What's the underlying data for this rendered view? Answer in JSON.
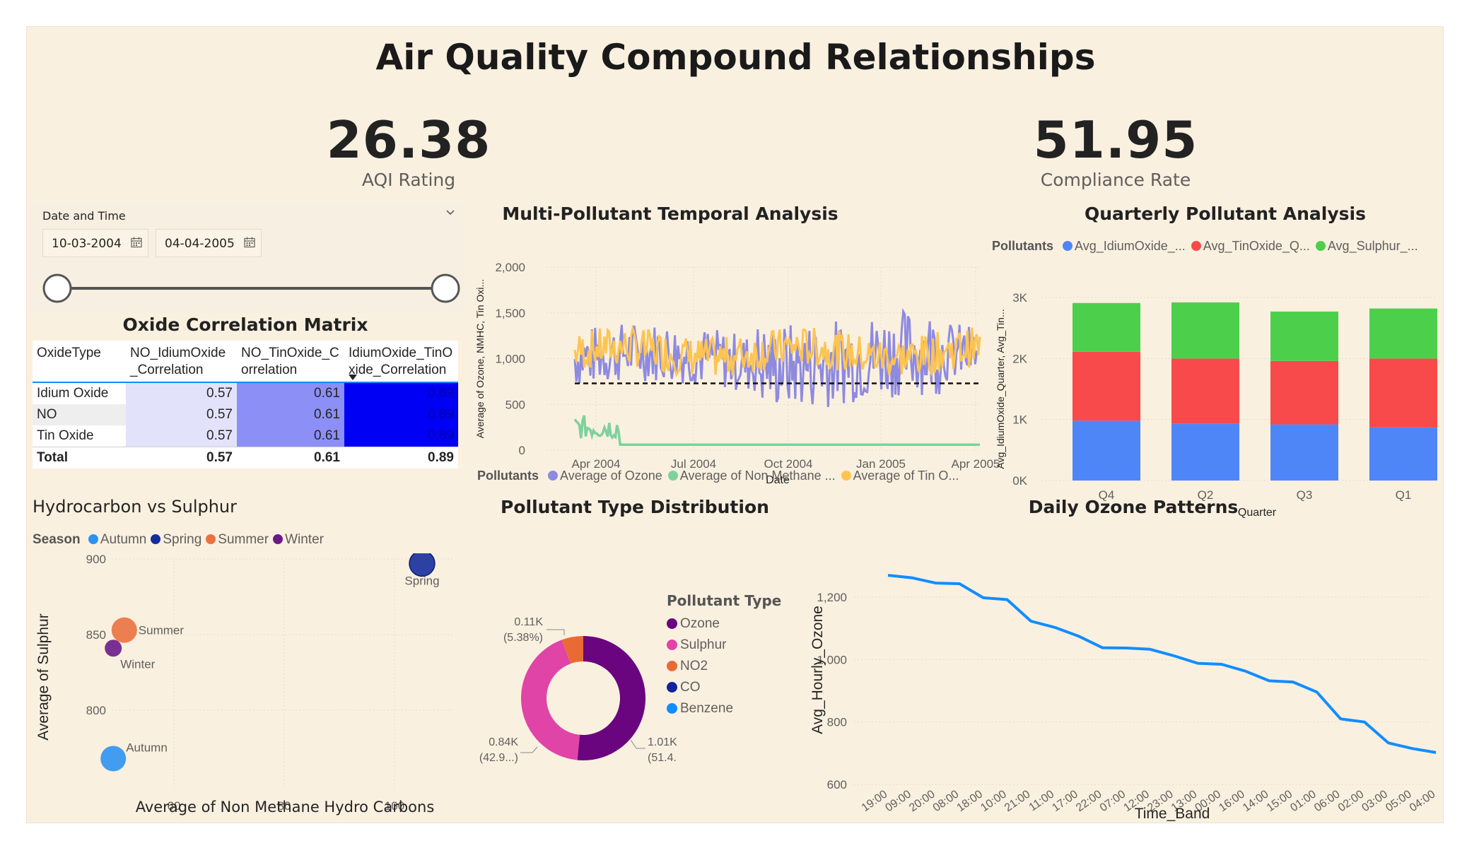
{
  "title": "Air Quality Compound Relationships",
  "kpis": [
    {
      "value": "26.38",
      "label": "AQI Rating"
    },
    {
      "value": "51.95",
      "label": "Compliance Rate"
    }
  ],
  "slicer": {
    "label": "Date and Time",
    "start": "10-03-2004",
    "end": "04-04-2005"
  },
  "matrix": {
    "title": "Oxide Correlation Matrix",
    "headers": [
      "OxideType",
      "NO_IdiumOxide_Correlation",
      "NO_TinOxide_Correlation",
      "IdiumOxide_TinOxide_Correlation"
    ],
    "rows": [
      {
        "label": "Idium Oxide",
        "values": [
          "0.57",
          "0.61",
          "0.89"
        ]
      },
      {
        "label": "NO",
        "values": [
          "0.57",
          "0.61",
          "0.89"
        ]
      },
      {
        "label": "Tin Oxide",
        "values": [
          "0.57",
          "0.61",
          "0.89"
        ]
      }
    ],
    "total": {
      "label": "Total",
      "values": [
        "0.57",
        "0.61",
        "0.89"
      ]
    },
    "colors": [
      "#e2e3fa",
      "#8c8ff6",
      "#0000f5"
    ]
  },
  "temporal": {
    "title": "Multi-Pollutant Temporal Analysis",
    "xlabel": "Date",
    "ylabel": "Average of Ozone, NMHC, Tin Oxi...",
    "legend_title": "Pollutants",
    "legend": [
      "Average of Ozone",
      "Average of Non Methane ...",
      "Average of Tin O..."
    ],
    "colors": [
      "#8d8ae0",
      "#7ed19b",
      "#fdc451"
    ],
    "yticks": [
      "0",
      "500",
      "1,000",
      "1,500",
      "2,000"
    ],
    "xticks": [
      "Apr 2004",
      "Jul 2004",
      "Oct 2004",
      "Jan 2005",
      "Apr 2005"
    ]
  },
  "quarterly": {
    "title": "Quarterly Pollutant Analysis",
    "legend_title": "Pollutants",
    "legend": [
      "Avg_IdiumOxide_...",
      "Avg_TinOxide_Q...",
      "Avg_Sulphur_..."
    ],
    "colors": [
      "#4f86f7",
      "#f84a4a",
      "#4cd04c"
    ],
    "ylabel": "Avg_IdiumOxide_Quarter, Avg_Tin...",
    "xlabel": "Quarter",
    "yticks": [
      "0K",
      "1K",
      "2K",
      "3K"
    ]
  },
  "scatter": {
    "title": "Hydrocarbon vs Sulphur",
    "legend_title": "Season",
    "legend": [
      "Autumn",
      "Spring",
      "Summer",
      "Winter"
    ],
    "colors": [
      "#2d92f2",
      "#152e9c",
      "#ea7240",
      "#6b1a8a"
    ],
    "xlabel": "Average of Non Methane Hydro Carbons",
    "ylabel": "Average of Sulphur",
    "xticks": [
      "60",
      "80",
      "100"
    ],
    "yticks": [
      "800",
      "850",
      "900"
    ],
    "labels": [
      "Autumn",
      "Spring",
      "Summer",
      "Winter"
    ]
  },
  "donut": {
    "title": "Pollutant Type Distribution",
    "legend_title": "Pollutant Type",
    "legend": [
      "Ozone",
      "Sulphur",
      "NO2",
      "CO",
      "Benzene"
    ],
    "colors": [
      "#6b057f",
      "#e044a7",
      "#ea6a36",
      "#12239e",
      "#118dff"
    ],
    "label_ozone": [
      "1.01K",
      "(51.4...)"
    ],
    "label_sulphur": [
      "0.84K",
      "(42.9...)"
    ],
    "label_no2": [
      "0.11K",
      "(5.38%)"
    ]
  },
  "daily": {
    "title": "Daily Ozone Patterns",
    "xlabel": "Time_Band",
    "ylabel": "Avg_Hourly_Ozone",
    "yticks": [
      "600",
      "800",
      "1,000",
      "1,200"
    ],
    "color": "#118dff"
  },
  "chart_data": [
    {
      "type": "line",
      "title": "Multi-Pollutant Temporal Analysis",
      "xlabel": "Date",
      "ylabel": "Average of Ozone, NMHC, Tin Oxi...",
      "x_range": [
        "2004-03-10",
        "2005-04-04"
      ],
      "ylim": [
        0,
        2000
      ],
      "series": [
        {
          "name": "Average of Ozone",
          "approx_mean": 1000,
          "approx_range": [
            400,
            1900
          ]
        },
        {
          "name": "Average of Non Methane ...",
          "approx_values_early": [
            100,
            350
          ],
          "approx_later": 60
        },
        {
          "name": "Average of Tin O...",
          "approx_mean": 1050,
          "approx_range": [
            750,
            1450
          ]
        }
      ],
      "reference_line": 730,
      "legend": "top"
    },
    {
      "type": "bar",
      "stacked": true,
      "title": "Quarterly Pollutant Analysis",
      "categories": [
        "Q4",
        "Q2",
        "Q3",
        "Q1"
      ],
      "series": [
        {
          "name": "Avg_IdiumOxide_...",
          "values": [
            980,
            930,
            920,
            870
          ]
        },
        {
          "name": "Avg_TinOxide_Q...",
          "values": [
            1130,
            1070,
            1040,
            1130
          ]
        },
        {
          "name": "Avg_Sulphur_...",
          "values": [
            800,
            920,
            810,
            820
          ]
        }
      ],
      "ylim": [
        0,
        3000
      ],
      "xlabel": "Quarter"
    },
    {
      "type": "scatter",
      "title": "Hydrocarbon vs Sulphur",
      "xlabel": "Average of Non Methane Hydro Carbons",
      "ylabel": "Average of Sulphur",
      "xlim": [
        40,
        115
      ],
      "ylim": [
        765,
        905
      ],
      "points": [
        {
          "name": "Autumn",
          "x": 49,
          "y": 768
        },
        {
          "name": "Spring",
          "x": 105,
          "y": 897
        },
        {
          "name": "Summer",
          "x": 51,
          "y": 853
        },
        {
          "name": "Winter",
          "x": 49,
          "y": 841
        }
      ]
    },
    {
      "type": "pie",
      "title": "Pollutant Type Distribution",
      "donut": true,
      "slices": [
        {
          "name": "Ozone",
          "value": 1010,
          "percent": 51.4
        },
        {
          "name": "Sulphur",
          "value": 840,
          "percent": 42.9
        },
        {
          "name": "NO2",
          "value": 110,
          "percent": 5.38
        },
        {
          "name": "CO",
          "value": 0
        },
        {
          "name": "Benzene",
          "value": 0
        }
      ]
    },
    {
      "type": "line",
      "title": "Daily Ozone Patterns",
      "xlabel": "Time_Band",
      "ylabel": "Avg_Hourly_Ozone",
      "categories": [
        "19:00",
        "09:00",
        "20:00",
        "08:00",
        "18:00",
        "10:00",
        "21:00",
        "11:00",
        "17:00",
        "22:00",
        "07:00",
        "12:00",
        "23:00",
        "13:00",
        "00:00",
        "16:00",
        "14:00",
        "15:00",
        "01:00",
        "06:00",
        "02:00",
        "03:00",
        "05:00",
        "04:00"
      ],
      "values": [
        1270,
        1262,
        1245,
        1243,
        1198,
        1192,
        1123,
        1103,
        1075,
        1038,
        1037,
        1033,
        1012,
        988,
        985,
        963,
        932,
        928,
        896,
        810,
        800,
        733,
        715,
        702
      ],
      "ylim": [
        600,
        1300
      ]
    }
  ]
}
